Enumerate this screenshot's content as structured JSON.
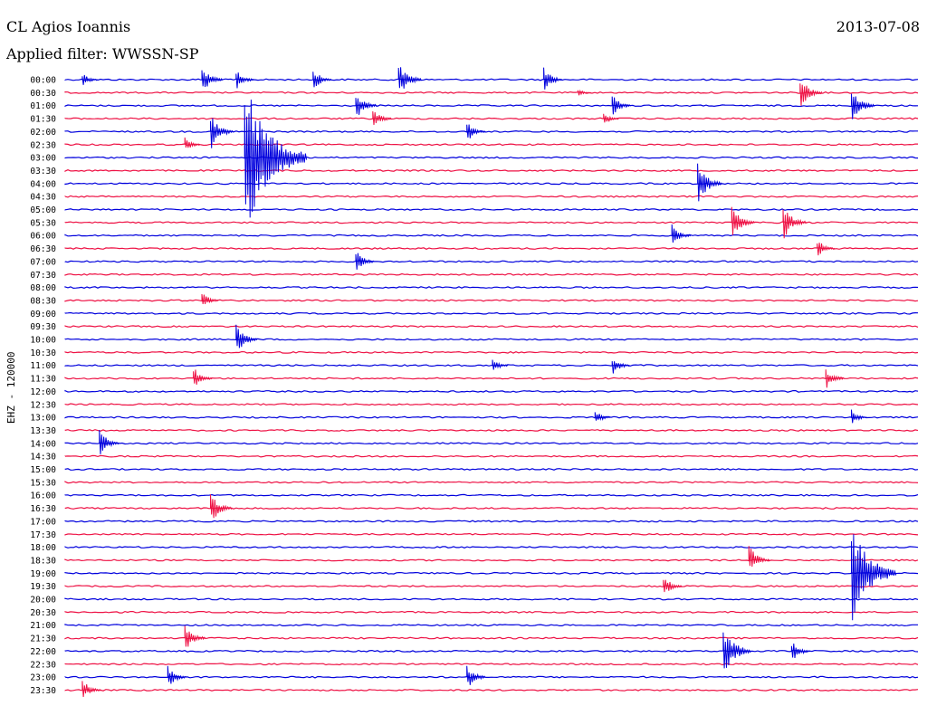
{
  "header": {
    "station": "CL Agios Ioannis",
    "filter": "Applied filter: WWSSN-SP",
    "date": "2013-07-08"
  },
  "channel_label": "EHZ - 120000",
  "colors": {
    "even": "#0000dd",
    "odd": "#ee1144"
  },
  "chart_data": {
    "type": "line",
    "title": "",
    "xlabel": "",
    "ylabel": "EHZ - 120000",
    "grid": false,
    "y_tick_labels": [
      "00:00",
      "00:30",
      "01:00",
      "01:30",
      "02:00",
      "02:30",
      "03:00",
      "03:30",
      "04:00",
      "04:30",
      "05:00",
      "05:30",
      "06:00",
      "06:30",
      "07:00",
      "07:30",
      "08:00",
      "08:30",
      "09:00",
      "09:30",
      "10:00",
      "10:30",
      "11:00",
      "11:30",
      "12:00",
      "12:30",
      "13:00",
      "13:30",
      "14:00",
      "14:30",
      "15:00",
      "15:30",
      "16:00",
      "16:30",
      "17:00",
      "17:30",
      "18:00",
      "18:30",
      "19:00",
      "19:30",
      "20:00",
      "20:30",
      "21:00",
      "21:30",
      "22:00",
      "22:30",
      "23:00",
      "23:30"
    ],
    "trace_colors": [
      "blue",
      "red"
    ],
    "events": [
      {
        "trace": "00:00",
        "x": 0.02,
        "amp": 0.6
      },
      {
        "trace": "00:00",
        "x": 0.16,
        "amp": 1.2
      },
      {
        "trace": "00:00",
        "x": 0.2,
        "amp": 0.8
      },
      {
        "trace": "00:00",
        "x": 0.29,
        "amp": 0.9
      },
      {
        "trace": "00:00",
        "x": 0.39,
        "amp": 1.4
      },
      {
        "trace": "00:00",
        "x": 0.56,
        "amp": 1.0
      },
      {
        "trace": "00:30",
        "x": 0.6,
        "amp": 0.3
      },
      {
        "trace": "00:30",
        "x": 0.86,
        "amp": 1.3
      },
      {
        "trace": "01:00",
        "x": 0.34,
        "amp": 1.2
      },
      {
        "trace": "01:00",
        "x": 0.64,
        "amp": 0.9
      },
      {
        "trace": "01:00",
        "x": 0.92,
        "amp": 1.4
      },
      {
        "trace": "01:30",
        "x": 0.36,
        "amp": 0.9
      },
      {
        "trace": "01:30",
        "x": 0.63,
        "amp": 0.6
      },
      {
        "trace": "02:00",
        "x": 0.17,
        "amp": 1.5
      },
      {
        "trace": "02:00",
        "x": 0.47,
        "amp": 0.9
      },
      {
        "trace": "02:30",
        "x": 0.14,
        "amp": 0.6
      },
      {
        "trace": "03:00",
        "x": 0.21,
        "amp": 6.0
      },
      {
        "trace": "04:00",
        "x": 0.74,
        "amp": 1.6
      },
      {
        "trace": "05:30",
        "x": 0.78,
        "amp": 1.4
      },
      {
        "trace": "05:30",
        "x": 0.84,
        "amp": 1.5
      },
      {
        "trace": "06:00",
        "x": 0.71,
        "amp": 0.9
      },
      {
        "trace": "06:30",
        "x": 0.88,
        "amp": 0.8
      },
      {
        "trace": "07:00",
        "x": 0.34,
        "amp": 0.9
      },
      {
        "trace": "08:30",
        "x": 0.16,
        "amp": 0.7
      },
      {
        "trace": "10:00",
        "x": 0.2,
        "amp": 1.2
      },
      {
        "trace": "11:00",
        "x": 0.5,
        "amp": 0.6
      },
      {
        "trace": "11:00",
        "x": 0.64,
        "amp": 0.8
      },
      {
        "trace": "11:30",
        "x": 0.15,
        "amp": 1.0
      },
      {
        "trace": "11:30",
        "x": 0.89,
        "amp": 0.9
      },
      {
        "trace": "13:00",
        "x": 0.62,
        "amp": 0.6
      },
      {
        "trace": "13:00",
        "x": 0.92,
        "amp": 0.6
      },
      {
        "trace": "14:00",
        "x": 0.04,
        "amp": 1.1
      },
      {
        "trace": "16:30",
        "x": 0.17,
        "amp": 1.3
      },
      {
        "trace": "18:30",
        "x": 0.8,
        "amp": 1.2
      },
      {
        "trace": "19:00",
        "x": 0.92,
        "amp": 4.0
      },
      {
        "trace": "19:30",
        "x": 0.7,
        "amp": 0.9
      },
      {
        "trace": "21:30",
        "x": 0.14,
        "amp": 1.2
      },
      {
        "trace": "22:00",
        "x": 0.77,
        "amp": 2.0
      },
      {
        "trace": "22:00",
        "x": 0.85,
        "amp": 0.9
      },
      {
        "trace": "23:00",
        "x": 0.12,
        "amp": 0.9
      },
      {
        "trace": "23:00",
        "x": 0.47,
        "amp": 1.0
      },
      {
        "trace": "23:30",
        "x": 0.02,
        "amp": 0.9
      }
    ]
  }
}
